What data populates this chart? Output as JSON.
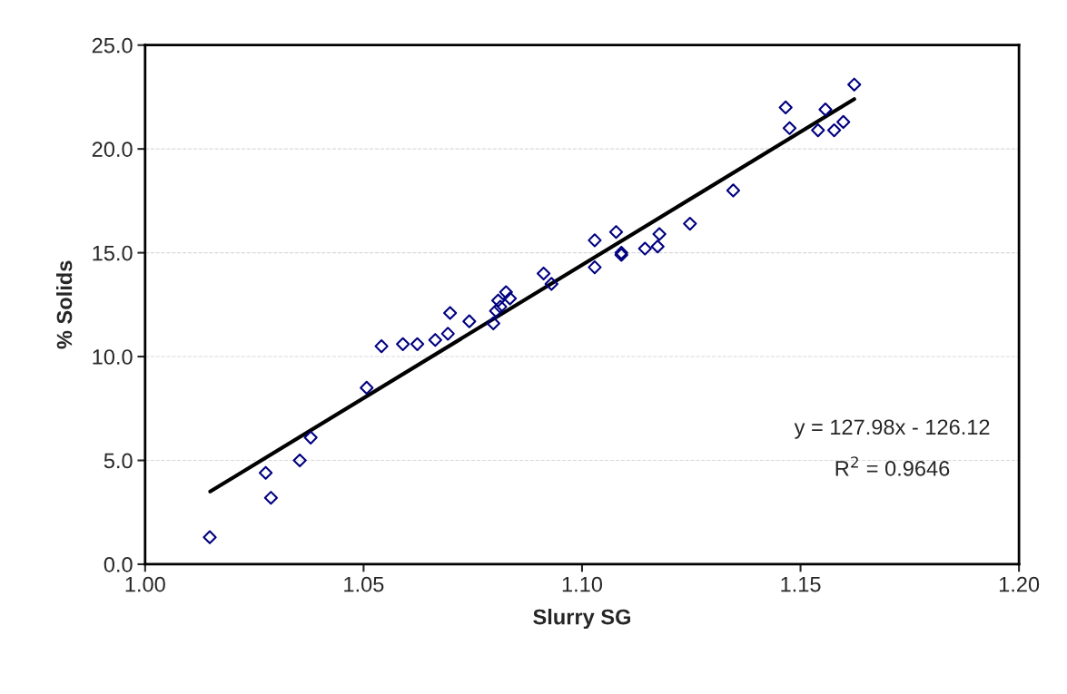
{
  "chart_data": {
    "type": "scatter",
    "xlabel": "Slurry SG",
    "ylabel": "% Solids",
    "xlim": [
      1.0,
      1.2
    ],
    "ylim": [
      0,
      25
    ],
    "xticks": [
      {
        "value": 1.0,
        "label": "1.00"
      },
      {
        "value": 1.05,
        "label": "1.05"
      },
      {
        "value": 1.1,
        "label": "1.10"
      },
      {
        "value": 1.15,
        "label": "1.15"
      },
      {
        "value": 1.2,
        "label": "1.20"
      }
    ],
    "yticks": [
      {
        "value": 0,
        "label": "0.0"
      },
      {
        "value": 5,
        "label": "5.0"
      },
      {
        "value": 10,
        "label": "10.0"
      },
      {
        "value": 15,
        "label": "15.0"
      },
      {
        "value": 20,
        "label": "20.0"
      },
      {
        "value": 25,
        "label": "25.0"
      }
    ],
    "grid": "y",
    "marker": "diamond",
    "legend": false,
    "annotations": [
      "y = 127.98x - 126.12",
      "R$^{2}$ = 0.9646"
    ],
    "series": [
      {
        "color": "#000080",
        "x": [
          1.0148,
          1.0276,
          1.0288,
          1.0354,
          1.0379,
          1.0507,
          1.0541,
          1.059,
          1.0623,
          1.0664,
          1.0693,
          1.0698,
          1.0742,
          1.0797,
          1.0803,
          1.0808,
          1.0813,
          1.0826,
          1.0835,
          1.0912,
          1.093,
          1.1029,
          1.1029,
          1.1078,
          1.109,
          1.109,
          1.1144,
          1.1173,
          1.1177,
          1.1247,
          1.1346,
          1.1466,
          1.1475,
          1.154,
          1.1557,
          1.1577,
          1.1598,
          1.1623
        ],
        "values": [
          1.3,
          4.4,
          3.2,
          5.0,
          6.1,
          8.5,
          10.5,
          10.6,
          10.6,
          10.8,
          11.1,
          12.1,
          11.7,
          11.6,
          12.2,
          12.7,
          12.4,
          13.1,
          12.8,
          14.0,
          13.5,
          15.6,
          14.3,
          16.0,
          15.0,
          14.9,
          15.2,
          15.3,
          15.9,
          16.4,
          18.0,
          22.0,
          21.0,
          20.9,
          21.9,
          20.9,
          21.3,
          23.1
        ]
      },
      {
        "type": "line",
        "color": "#000000",
        "marker": "none",
        "line_style": "solid",
        "x": [
          1.0149,
          1.1623
        ],
        "values": [
          3.5,
          22.4
        ]
      }
    ]
  }
}
